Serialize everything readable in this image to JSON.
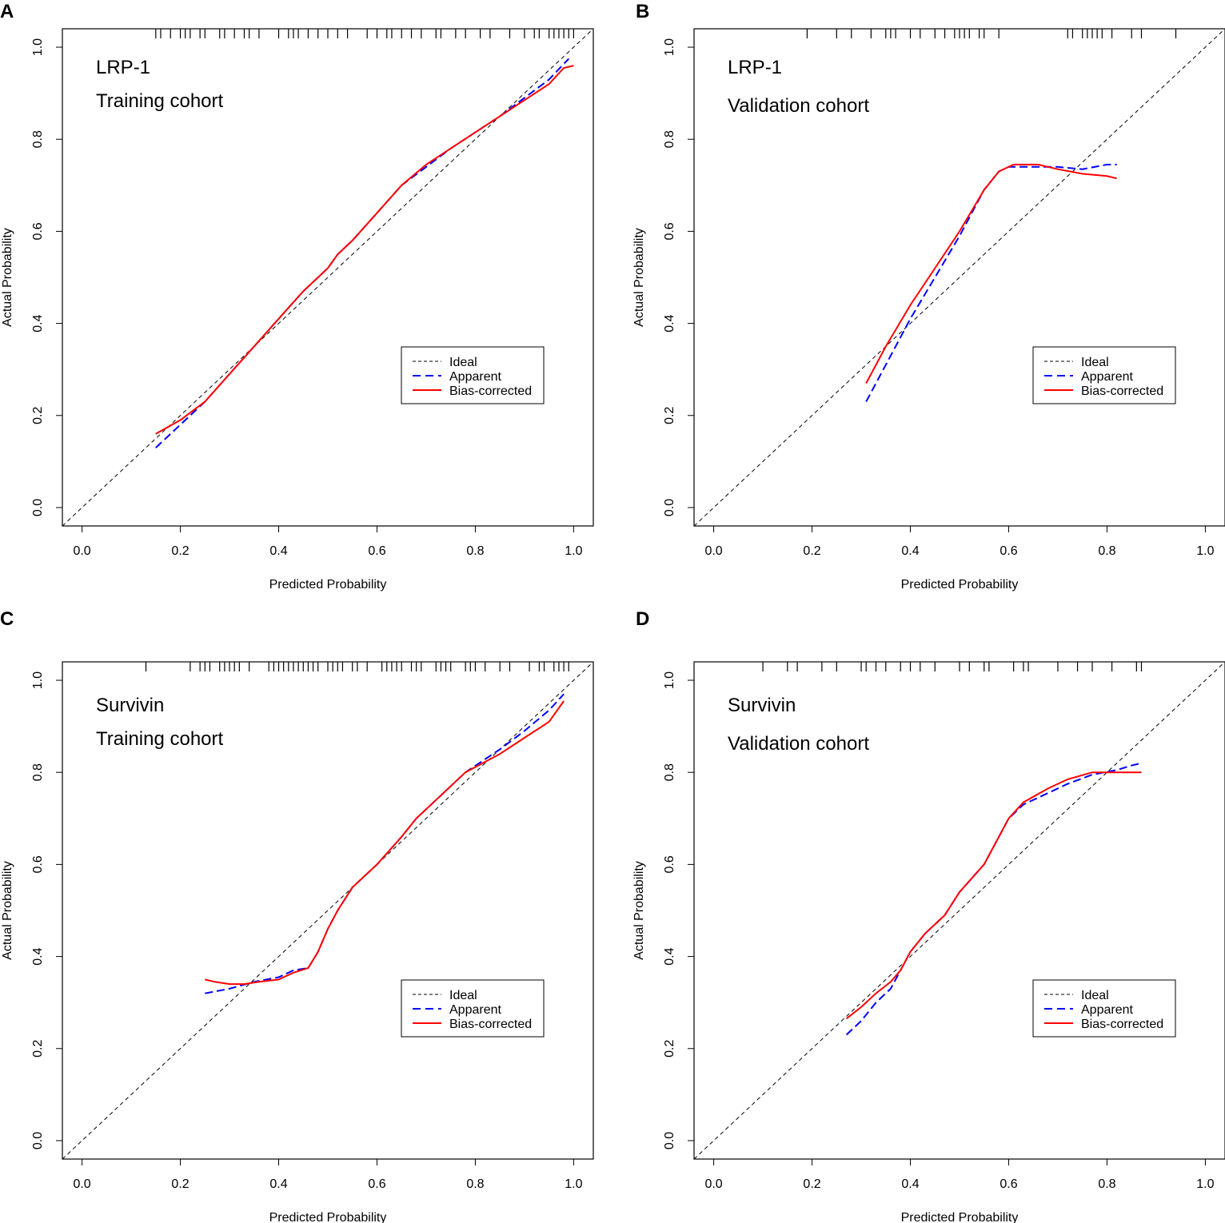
{
  "colors": {
    "ideal": "#000000",
    "apparent": "#0000ff",
    "bias_corrected": "#ff0000",
    "frame": "#000000"
  },
  "chart_data": [
    {
      "panel": "A",
      "type": "line",
      "annotations": [
        "LRP-1",
        "Training cohort"
      ],
      "xlabel": "Predicted Probability",
      "ylabel": "Actual Probability",
      "xlim": [
        -0.04,
        1.04
      ],
      "ylim": [
        -0.04,
        1.04
      ],
      "xticks": [
        "0.0",
        "0.2",
        "0.4",
        "0.6",
        "0.8",
        "1.0"
      ],
      "yticks": [
        "0.0",
        "0.2",
        "0.4",
        "0.6",
        "0.8",
        "1.0"
      ],
      "legend": [
        "Ideal",
        "Apparent",
        "Bias-corrected"
      ],
      "legend_position": "bottom-right",
      "series": [
        {
          "name": "Ideal",
          "x": [
            -0.04,
            1.04
          ],
          "y": [
            -0.04,
            1.04
          ]
        },
        {
          "name": "Apparent",
          "x": [
            0.15,
            0.2,
            0.25,
            0.3,
            0.35,
            0.4,
            0.45,
            0.5,
            0.52,
            0.55,
            0.6,
            0.65,
            0.7,
            0.75,
            0.8,
            0.85,
            0.9,
            0.95,
            0.99
          ],
          "y": [
            0.13,
            0.18,
            0.23,
            0.29,
            0.35,
            0.41,
            0.47,
            0.52,
            0.55,
            0.58,
            0.64,
            0.7,
            0.74,
            0.78,
            0.815,
            0.85,
            0.89,
            0.93,
            0.975
          ]
        },
        {
          "name": "Bias-corrected",
          "x": [
            0.15,
            0.2,
            0.25,
            0.3,
            0.35,
            0.4,
            0.45,
            0.5,
            0.52,
            0.55,
            0.6,
            0.65,
            0.7,
            0.75,
            0.8,
            0.85,
            0.9,
            0.95,
            0.98,
            1.0
          ],
          "y": [
            0.16,
            0.19,
            0.23,
            0.29,
            0.35,
            0.41,
            0.47,
            0.52,
            0.55,
            0.58,
            0.64,
            0.7,
            0.745,
            0.78,
            0.815,
            0.85,
            0.885,
            0.92,
            0.955,
            0.96
          ]
        }
      ],
      "rug": [
        0.15,
        0.16,
        0.18,
        0.2,
        0.21,
        0.22,
        0.24,
        0.25,
        0.28,
        0.29,
        0.31,
        0.33,
        0.34,
        0.36,
        0.4,
        0.42,
        0.43,
        0.44,
        0.46,
        0.48,
        0.5,
        0.52,
        0.54,
        0.58,
        0.6,
        0.62,
        0.63,
        0.65,
        0.67,
        0.69,
        0.72,
        0.73,
        0.76,
        0.78,
        0.81,
        0.83,
        0.87,
        0.9,
        0.92,
        0.93,
        0.95,
        0.96,
        0.97,
        0.98,
        0.99,
        1.0
      ]
    },
    {
      "panel": "B",
      "type": "line",
      "annotations": [
        "LRP-1",
        "Validation cohort"
      ],
      "xlabel": "Predicted Probability",
      "ylabel": "Actual Probability",
      "xlim": [
        -0.04,
        1.04
      ],
      "ylim": [
        -0.04,
        1.04
      ],
      "xticks": [
        "0.0",
        "0.2",
        "0.4",
        "0.6",
        "0.8",
        "1.0"
      ],
      "yticks": [
        "0.0",
        "0.2",
        "0.4",
        "0.6",
        "0.8",
        "1.0"
      ],
      "legend": [
        "Ideal",
        "Apparent",
        "Bias-corrected"
      ],
      "legend_position": "bottom-right",
      "series": [
        {
          "name": "Ideal",
          "x": [
            -0.04,
            1.04
          ],
          "y": [
            -0.04,
            1.04
          ]
        },
        {
          "name": "Apparent",
          "x": [
            0.31,
            0.35,
            0.4,
            0.45,
            0.5,
            0.55,
            0.58,
            0.6,
            0.65,
            0.7,
            0.75,
            0.8,
            0.82
          ],
          "y": [
            0.23,
            0.31,
            0.41,
            0.5,
            0.59,
            0.69,
            0.73,
            0.74,
            0.74,
            0.74,
            0.735,
            0.745,
            0.745
          ]
        },
        {
          "name": "Bias-corrected",
          "x": [
            0.31,
            0.35,
            0.4,
            0.45,
            0.5,
            0.55,
            0.58,
            0.61,
            0.66,
            0.7,
            0.75,
            0.8,
            0.82
          ],
          "y": [
            0.27,
            0.35,
            0.44,
            0.52,
            0.6,
            0.69,
            0.73,
            0.745,
            0.745,
            0.735,
            0.725,
            0.72,
            0.715
          ]
        }
      ],
      "rug": [
        0.19,
        0.25,
        0.28,
        0.32,
        0.35,
        0.36,
        0.37,
        0.4,
        0.42,
        0.45,
        0.47,
        0.49,
        0.5,
        0.51,
        0.52,
        0.54,
        0.55,
        0.58,
        0.72,
        0.73,
        0.75,
        0.76,
        0.77,
        0.78,
        0.79,
        0.81,
        0.85,
        0.87,
        0.94
      ]
    },
    {
      "panel": "C",
      "type": "line",
      "annotations": [
        "Survivin",
        "Training cohort"
      ],
      "xlabel": "Predicted Probability",
      "ylabel": "Actual Probability",
      "xlim": [
        -0.04,
        1.04
      ],
      "ylim": [
        -0.04,
        1.04
      ],
      "xticks": [
        "0.0",
        "0.2",
        "0.4",
        "0.6",
        "0.8",
        "1.0"
      ],
      "yticks": [
        "0.0",
        "0.2",
        "0.4",
        "0.6",
        "0.8",
        "1.0"
      ],
      "legend": [
        "Ideal",
        "Apparent",
        "Bias-corrected"
      ],
      "legend_position": "bottom-right",
      "series": [
        {
          "name": "Ideal",
          "x": [
            -0.04,
            1.04
          ],
          "y": [
            -0.04,
            1.04
          ]
        },
        {
          "name": "Apparent",
          "x": [
            0.25,
            0.3,
            0.35,
            0.4,
            0.43,
            0.46,
            0.48,
            0.5,
            0.52,
            0.55,
            0.6,
            0.65,
            0.68,
            0.72,
            0.78,
            0.85,
            0.9,
            0.95,
            0.98
          ],
          "y": [
            0.32,
            0.33,
            0.345,
            0.355,
            0.37,
            0.375,
            0.41,
            0.46,
            0.5,
            0.55,
            0.6,
            0.66,
            0.7,
            0.74,
            0.8,
            0.85,
            0.89,
            0.935,
            0.97
          ]
        },
        {
          "name": "Bias-corrected",
          "x": [
            0.25,
            0.27,
            0.3,
            0.33,
            0.36,
            0.4,
            0.43,
            0.46,
            0.48,
            0.5,
            0.52,
            0.55,
            0.6,
            0.65,
            0.68,
            0.72,
            0.78,
            0.85,
            0.9,
            0.95,
            0.98
          ],
          "y": [
            0.35,
            0.345,
            0.34,
            0.34,
            0.345,
            0.35,
            0.365,
            0.375,
            0.41,
            0.46,
            0.5,
            0.55,
            0.6,
            0.66,
            0.7,
            0.74,
            0.8,
            0.84,
            0.875,
            0.91,
            0.955
          ]
        }
      ],
      "rug": [
        0.13,
        0.22,
        0.24,
        0.25,
        0.26,
        0.28,
        0.29,
        0.3,
        0.31,
        0.32,
        0.34,
        0.38,
        0.39,
        0.4,
        0.41,
        0.42,
        0.43,
        0.44,
        0.45,
        0.46,
        0.47,
        0.48,
        0.5,
        0.51,
        0.52,
        0.53,
        0.55,
        0.56,
        0.58,
        0.61,
        0.62,
        0.63,
        0.64,
        0.65,
        0.67,
        0.68,
        0.69,
        0.72,
        0.73,
        0.74,
        0.75,
        0.78,
        0.79,
        0.8,
        0.82,
        0.85,
        0.87,
        0.91,
        0.93,
        0.94,
        0.96,
        0.97,
        0.98,
        0.99
      ]
    },
    {
      "panel": "D",
      "type": "line",
      "annotations": [
        "Survivin",
        "Validation cohort"
      ],
      "xlabel": "Predicted Probability",
      "ylabel": "Actual Probability",
      "xlim": [
        -0.04,
        1.04
      ],
      "ylim": [
        -0.04,
        1.04
      ],
      "xticks": [
        "0.0",
        "0.2",
        "0.4",
        "0.6",
        "0.8",
        "1.0"
      ],
      "yticks": [
        "0.0",
        "0.2",
        "0.4",
        "0.6",
        "0.8",
        "1.0"
      ],
      "legend": [
        "Ideal",
        "Apparent",
        "Bias-corrected"
      ],
      "legend_position": "bottom-right",
      "series": [
        {
          "name": "Ideal",
          "x": [
            -0.04,
            1.04
          ],
          "y": [
            -0.04,
            1.04
          ]
        },
        {
          "name": "Apparent",
          "x": [
            0.27,
            0.3,
            0.33,
            0.36,
            0.38,
            0.4,
            0.43,
            0.47,
            0.5,
            0.55,
            0.58,
            0.6,
            0.63,
            0.68,
            0.72,
            0.77,
            0.82,
            0.85,
            0.87
          ],
          "y": [
            0.23,
            0.26,
            0.3,
            0.33,
            0.37,
            0.41,
            0.45,
            0.49,
            0.54,
            0.6,
            0.66,
            0.7,
            0.73,
            0.755,
            0.775,
            0.795,
            0.805,
            0.815,
            0.82
          ]
        },
        {
          "name": "Bias-corrected",
          "x": [
            0.27,
            0.3,
            0.33,
            0.36,
            0.38,
            0.4,
            0.43,
            0.47,
            0.5,
            0.55,
            0.58,
            0.6,
            0.63,
            0.68,
            0.72,
            0.77,
            0.82,
            0.85,
            0.87
          ],
          "y": [
            0.265,
            0.29,
            0.32,
            0.345,
            0.37,
            0.41,
            0.45,
            0.49,
            0.54,
            0.6,
            0.66,
            0.7,
            0.735,
            0.765,
            0.785,
            0.8,
            0.8,
            0.8,
            0.8
          ]
        }
      ],
      "rug": [
        0.1,
        0.15,
        0.17,
        0.22,
        0.25,
        0.3,
        0.31,
        0.33,
        0.35,
        0.38,
        0.4,
        0.42,
        0.45,
        0.5,
        0.52,
        0.55,
        0.56,
        0.61,
        0.63,
        0.64,
        0.7,
        0.74,
        0.77,
        0.81,
        0.86,
        0.87
      ]
    }
  ]
}
